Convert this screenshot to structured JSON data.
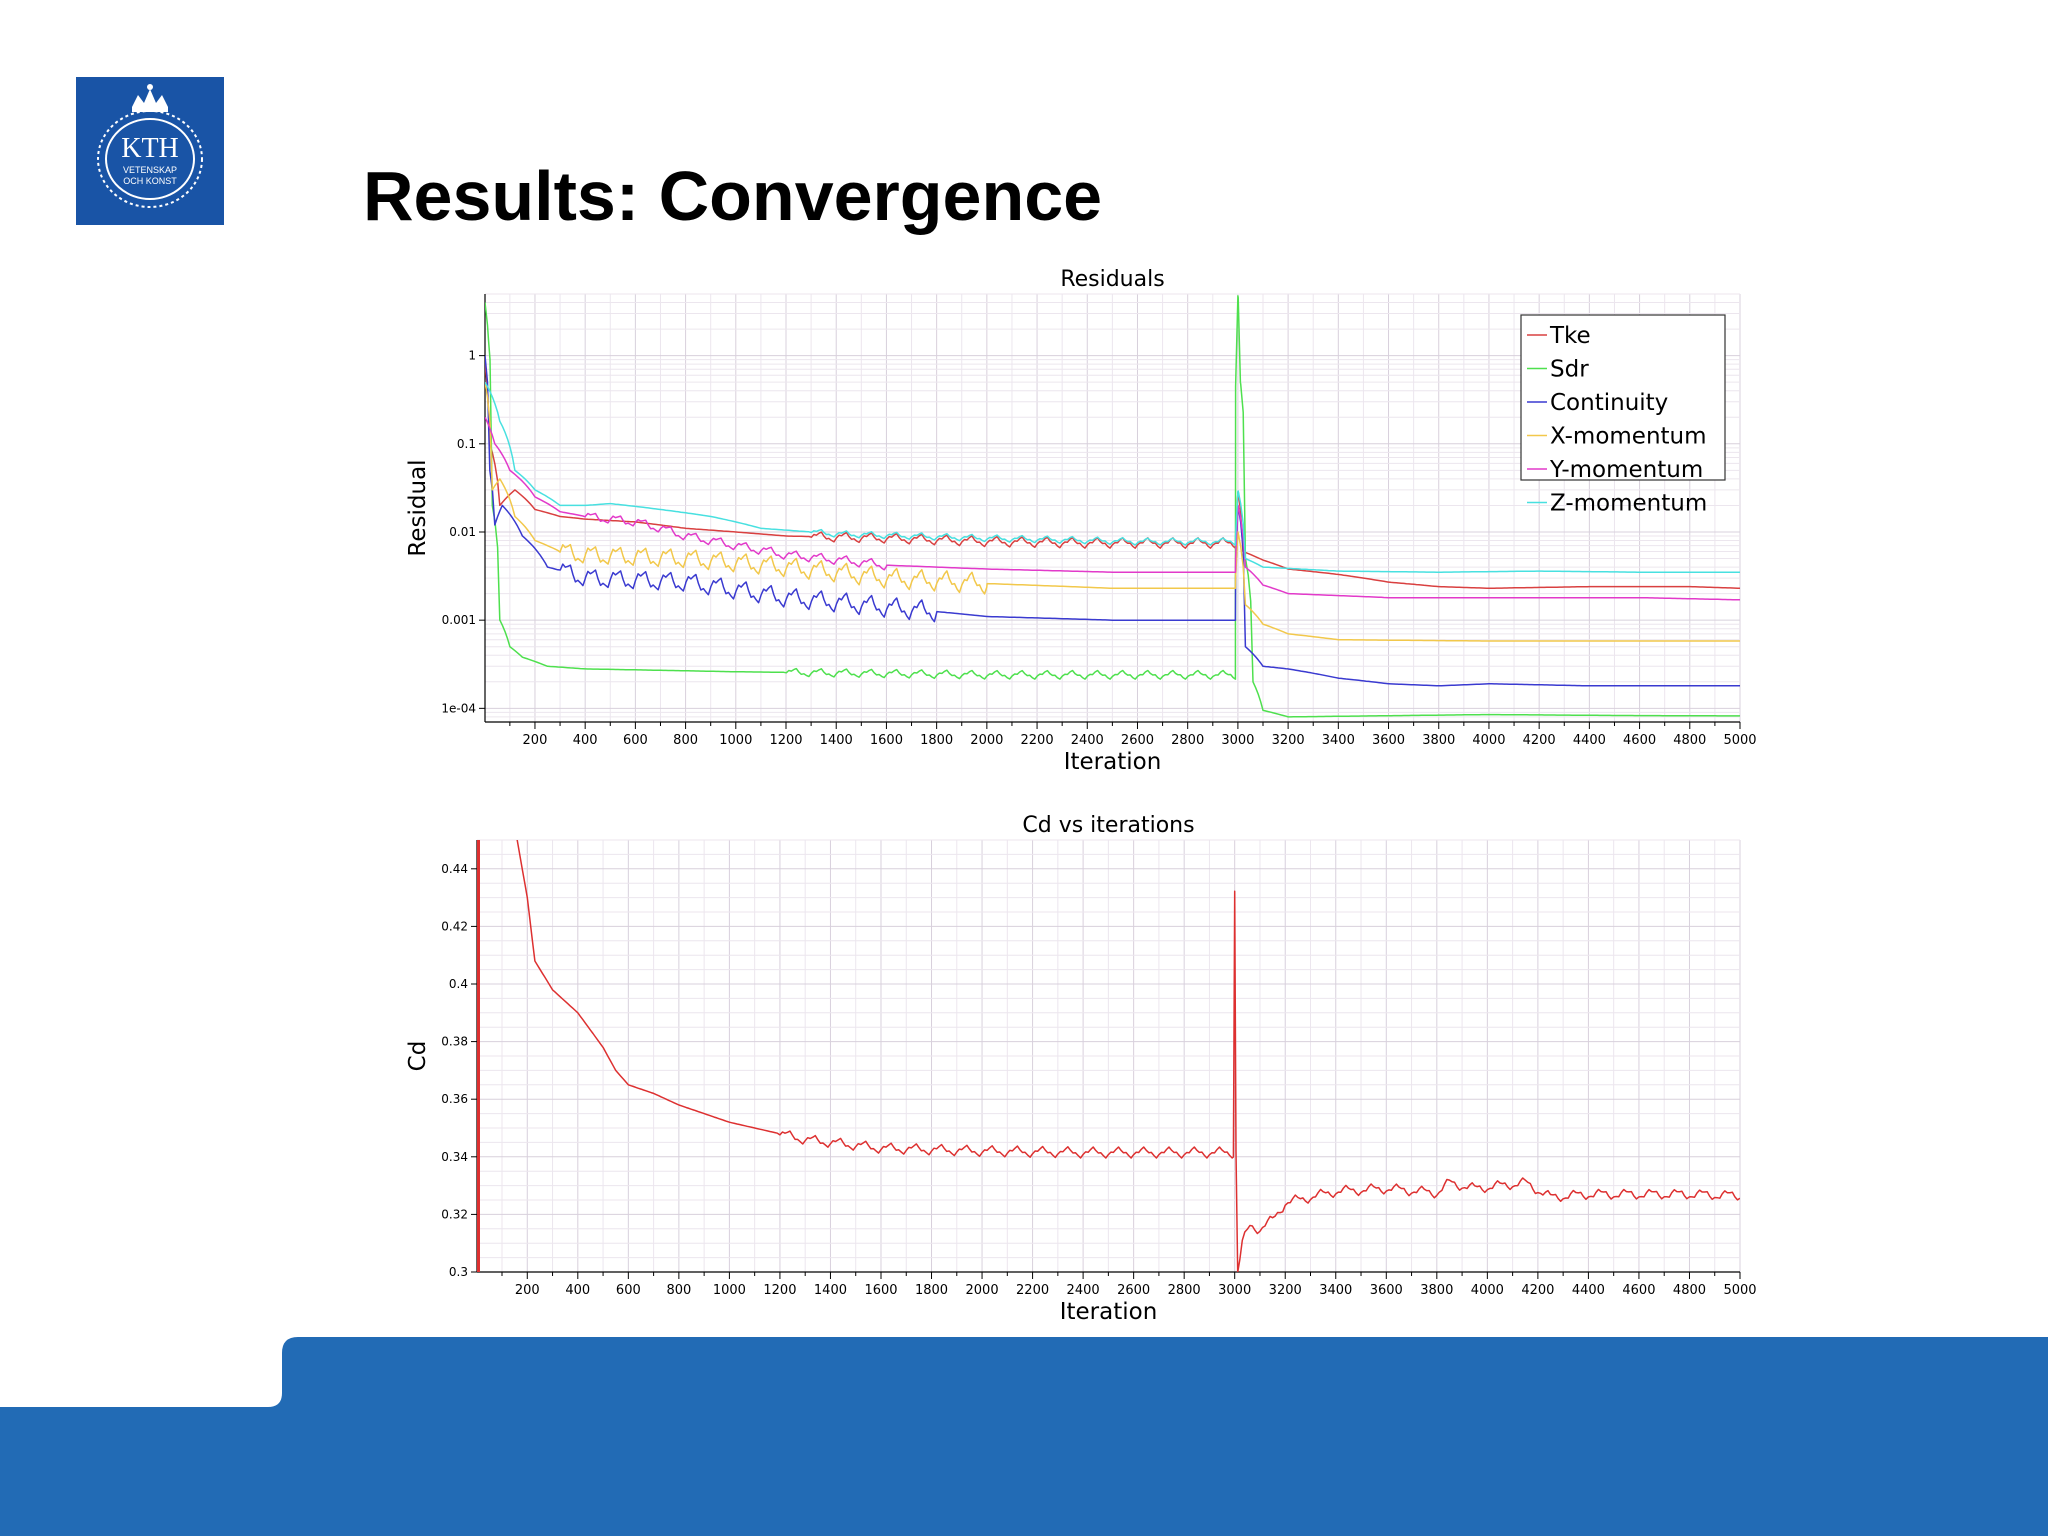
{
  "slide": {
    "title": "Results: Convergence",
    "logo": {
      "text": "KTH",
      "line1": "VETENSKAP",
      "line2": "OCH KONST",
      "color": "#1954a6"
    },
    "footer_color": "#226bb5"
  },
  "chart_data": [
    {
      "type": "line",
      "title": "Residuals",
      "xlabel": "Iteration",
      "ylabel": "Residual",
      "yscale": "log",
      "xlim": [
        1,
        5000
      ],
      "ylim": [
        7e-05,
        5
      ],
      "xticks": [
        200,
        400,
        600,
        800,
        1000,
        1200,
        1400,
        1600,
        1800,
        2000,
        2200,
        2400,
        2600,
        2800,
        3000,
        3200,
        3400,
        3600,
        3800,
        4000,
        4200,
        4400,
        4600,
        4800,
        5000
      ],
      "yticks": [
        0.0001,
        0.001,
        0.01,
        0.1,
        1
      ],
      "ytick_labels": [
        "1e-04",
        "0.001",
        "0.01",
        "0.1",
        "1"
      ],
      "grid": true,
      "legend_position": "top-right",
      "series": [
        {
          "name": "Tke",
          "color": "#d94040",
          "points": [
            [
              1,
              0.8
            ],
            [
              20,
              0.1
            ],
            [
              60,
              0.02
            ],
            [
              120,
              0.03
            ],
            [
              200,
              0.018
            ],
            [
              300,
              0.015
            ],
            [
              400,
              0.014
            ],
            [
              600,
              0.013
            ],
            [
              800,
              0.011
            ],
            [
              1000,
              0.01
            ],
            [
              1200,
              0.009
            ],
            [
              1600,
              0.0085
            ],
            [
              2000,
              0.0078
            ],
            [
              2400,
              0.0075
            ],
            [
              2800,
              0.0075
            ],
            [
              2990,
              0.0075
            ],
            [
              3000,
              0.03
            ],
            [
              3020,
              0.006
            ],
            [
              3100,
              0.0048
            ],
            [
              3200,
              0.0038
            ],
            [
              3400,
              0.0033
            ],
            [
              3600,
              0.0027
            ],
            [
              3800,
              0.0024
            ],
            [
              4000,
              0.0023
            ],
            [
              4400,
              0.0024
            ],
            [
              4800,
              0.0024
            ],
            [
              5000,
              0.0023
            ]
          ],
          "oscillation": [
            [
              1300,
              3000,
              0.12
            ]
          ]
        },
        {
          "name": "Sdr",
          "color": "#4ee04e",
          "points": [
            [
              1,
              4
            ],
            [
              15,
              1.5
            ],
            [
              30,
              0.02
            ],
            [
              60,
              0.001
            ],
            [
              100,
              0.0005
            ],
            [
              150,
              0.00038
            ],
            [
              250,
              0.0003
            ],
            [
              400,
              0.00028
            ],
            [
              1000,
              0.00026
            ],
            [
              2000,
              0.00024
            ],
            [
              2800,
              0.00024
            ],
            [
              2990,
              0.00024
            ],
            [
              3000,
              5
            ],
            [
              3010,
              0.5
            ],
            [
              3030,
              0.005
            ],
            [
              3060,
              0.0002
            ],
            [
              3100,
              9.5e-05
            ],
            [
              3200,
              8e-05
            ],
            [
              4000,
              8.5e-05
            ],
            [
              4500,
              8.3e-05
            ],
            [
              5000,
              8.2e-05
            ]
          ],
          "oscillation": [
            [
              1200,
              3000,
              0.1
            ]
          ]
        },
        {
          "name": "Continuity",
          "color": "#3a3ad0",
          "points": [
            [
              1,
              1
            ],
            [
              20,
              0.05
            ],
            [
              40,
              0.012
            ],
            [
              70,
              0.02
            ],
            [
              150,
              0.009
            ],
            [
              250,
              0.004
            ],
            [
              400,
              0.003
            ],
            [
              800,
              0.0027
            ],
            [
              1000,
              0.0022
            ],
            [
              1200,
              0.0018
            ],
            [
              1600,
              0.0014
            ],
            [
              2000,
              0.0011
            ],
            [
              2500,
              0.001
            ],
            [
              2990,
              0.001
            ],
            [
              3000,
              0.02
            ],
            [
              3030,
              0.0005
            ],
            [
              3100,
              0.0003
            ],
            [
              3200,
              0.00028
            ],
            [
              3400,
              0.00022
            ],
            [
              3600,
              0.00019
            ],
            [
              3800,
              0.00018
            ],
            [
              4000,
              0.00019
            ],
            [
              4400,
              0.00018
            ],
            [
              4800,
              0.00018
            ],
            [
              5000,
              0.00018
            ]
          ],
          "oscillation": [
            [
              300,
              1800,
              0.25
            ]
          ]
        },
        {
          "name": "X-momentum",
          "color": "#f2c84b",
          "points": [
            [
              1,
              0.5
            ],
            [
              30,
              0.03
            ],
            [
              60,
              0.04
            ],
            [
              120,
              0.015
            ],
            [
              200,
              0.008
            ],
            [
              300,
              0.006
            ],
            [
              400,
              0.0055
            ],
            [
              800,
              0.005
            ],
            [
              1200,
              0.004
            ],
            [
              1600,
              0.003
            ],
            [
              2000,
              0.0026
            ],
            [
              2500,
              0.0023
            ],
            [
              2990,
              0.0023
            ],
            [
              3000,
              0.01
            ],
            [
              3030,
              0.0015
            ],
            [
              3100,
              0.0009
            ],
            [
              3200,
              0.0007
            ],
            [
              3400,
              0.0006
            ],
            [
              4000,
              0.00058
            ],
            [
              4600,
              0.00058
            ],
            [
              5000,
              0.00058
            ]
          ],
          "oscillation": [
            [
              300,
              2000,
              0.25
            ]
          ]
        },
        {
          "name": "Y-momentum",
          "color": "#e23aca",
          "points": [
            [
              1,
              0.2
            ],
            [
              40,
              0.1
            ],
            [
              100,
              0.05
            ],
            [
              200,
              0.025
            ],
            [
              300,
              0.017
            ],
            [
              400,
              0.015
            ],
            [
              600,
              0.013
            ],
            [
              800,
              0.009
            ],
            [
              1000,
              0.007
            ],
            [
              1200,
              0.0055
            ],
            [
              1600,
              0.0042
            ],
            [
              2000,
              0.0038
            ],
            [
              2500,
              0.0035
            ],
            [
              2990,
              0.0035
            ],
            [
              3000,
              0.02
            ],
            [
              3030,
              0.004
            ],
            [
              3100,
              0.0025
            ],
            [
              3200,
              0.002
            ],
            [
              3600,
              0.0018
            ],
            [
              4000,
              0.0018
            ],
            [
              4600,
              0.0018
            ],
            [
              5000,
              0.0017
            ]
          ],
          "oscillation": [
            [
              400,
              1600,
              0.12
            ]
          ]
        },
        {
          "name": "Z-momentum",
          "color": "#48e0e0",
          "points": [
            [
              1,
              0.5
            ],
            [
              60,
              0.18
            ],
            [
              120,
              0.05
            ],
            [
              200,
              0.03
            ],
            [
              300,
              0.02
            ],
            [
              400,
              0.02
            ],
            [
              500,
              0.021
            ],
            [
              700,
              0.018
            ],
            [
              900,
              0.015
            ],
            [
              1100,
              0.011
            ],
            [
              1400,
              0.0095
            ],
            [
              2000,
              0.0085
            ],
            [
              2600,
              0.0078
            ],
            [
              2990,
              0.0078
            ],
            [
              3000,
              0.03
            ],
            [
              3030,
              0.005
            ],
            [
              3100,
              0.004
            ],
            [
              3400,
              0.0036
            ],
            [
              3800,
              0.0035
            ],
            [
              4200,
              0.0036
            ],
            [
              4600,
              0.0035
            ],
            [
              5000,
              0.0035
            ]
          ],
          "oscillation": [
            [
              1300,
              3000,
              0.08
            ]
          ]
        }
      ]
    },
    {
      "type": "line",
      "title": "Cd vs iterations",
      "xlabel": "Iteration",
      "ylabel": "Cd",
      "xlim": [
        1,
        5000
      ],
      "ylim": [
        0.3,
        0.45
      ],
      "xticks": [
        200,
        400,
        600,
        800,
        1000,
        1200,
        1400,
        1600,
        1800,
        2000,
        2200,
        2400,
        2600,
        2800,
        3000,
        3200,
        3400,
        3600,
        3800,
        4000,
        4200,
        4400,
        4600,
        4800,
        5000
      ],
      "yticks": [
        0.3,
        0.32,
        0.34,
        0.36,
        0.38,
        0.4,
        0.42,
        0.44
      ],
      "ytick_labels": [
        "0.3",
        "0.32",
        "0.34",
        "0.36",
        "0.38",
        "0.4",
        "0.42",
        "0.44"
      ],
      "grid": true,
      "series": [
        {
          "color": "#dd3030",
          "points": [
            [
              150,
              0.455
            ],
            [
              200,
              0.43
            ],
            [
              230,
              0.408
            ],
            [
              300,
              0.398
            ],
            [
              400,
              0.39
            ],
            [
              500,
              0.378
            ],
            [
              550,
              0.37
            ],
            [
              600,
              0.365
            ],
            [
              700,
              0.362
            ],
            [
              800,
              0.358
            ],
            [
              900,
              0.355
            ],
            [
              1000,
              0.352
            ],
            [
              1100,
              0.35
            ],
            [
              1200,
              0.348
            ],
            [
              1300,
              0.346
            ],
            [
              1400,
              0.345
            ],
            [
              1500,
              0.344
            ],
            [
              1600,
              0.343
            ],
            [
              1800,
              0.3425
            ],
            [
              2000,
              0.342
            ],
            [
              2400,
              0.3415
            ],
            [
              2800,
              0.3415
            ],
            [
              2995,
              0.3415
            ],
            [
              3000,
              0.433
            ],
            [
              3005,
              0.342
            ],
            [
              3012,
              0.3
            ],
            [
              3030,
              0.31
            ],
            [
              3060,
              0.316
            ],
            [
              3100,
              0.315
            ],
            [
              3150,
              0.318
            ],
            [
              3200,
              0.324
            ],
            [
              3300,
              0.326
            ],
            [
              3400,
              0.328
            ],
            [
              3600,
              0.329
            ],
            [
              3800,
              0.3275
            ],
            [
              3850,
              0.331
            ],
            [
              3950,
              0.329
            ],
            [
              4150,
              0.331
            ],
            [
              4250,
              0.326
            ],
            [
              4400,
              0.327
            ],
            [
              4600,
              0.327
            ],
            [
              4800,
              0.327
            ],
            [
              5000,
              0.3265
            ]
          ],
          "oscillation": [
            [
              1200,
              5000,
              0.0012
            ]
          ]
        }
      ]
    }
  ]
}
